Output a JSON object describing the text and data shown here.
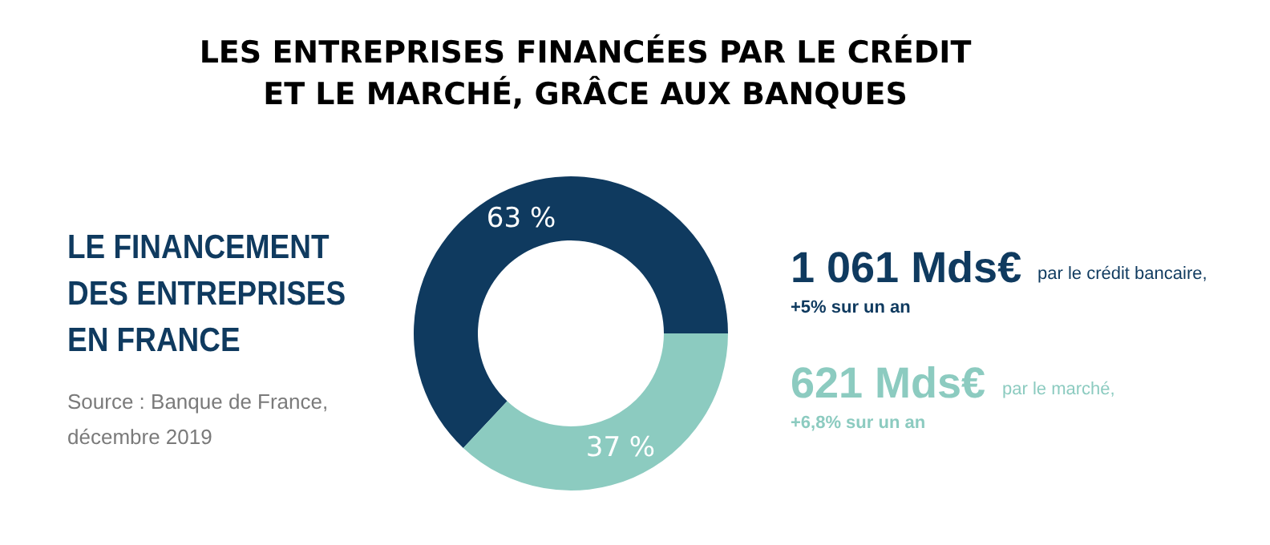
{
  "chart_data": {
    "type": "donut",
    "title": "LES ENTREPRISES FINANCÉES PAR LE CRÉDIT\nET LE MARCHÉ, GRÂCE AUX BANQUES",
    "subtitle": "LE FINANCEMENT\nDES ENTREPRISES\nEN FRANCE",
    "categories": [
      null,
      null
    ],
    "values": [
      63,
      37
    ],
    "value_labels": [
      "63 %",
      "37 %"
    ],
    "colors": [
      "#0f3a5f",
      "#8ccbc0"
    ],
    "annotations": [
      "Source : Banque de France,\ndécembre 2019",
      "1 061 Mds€",
      "par le crédit bancaire,",
      "+5% sur un an",
      "621 Mds€",
      "par le marché,",
      "+6,8% sur un an"
    ]
  }
}
